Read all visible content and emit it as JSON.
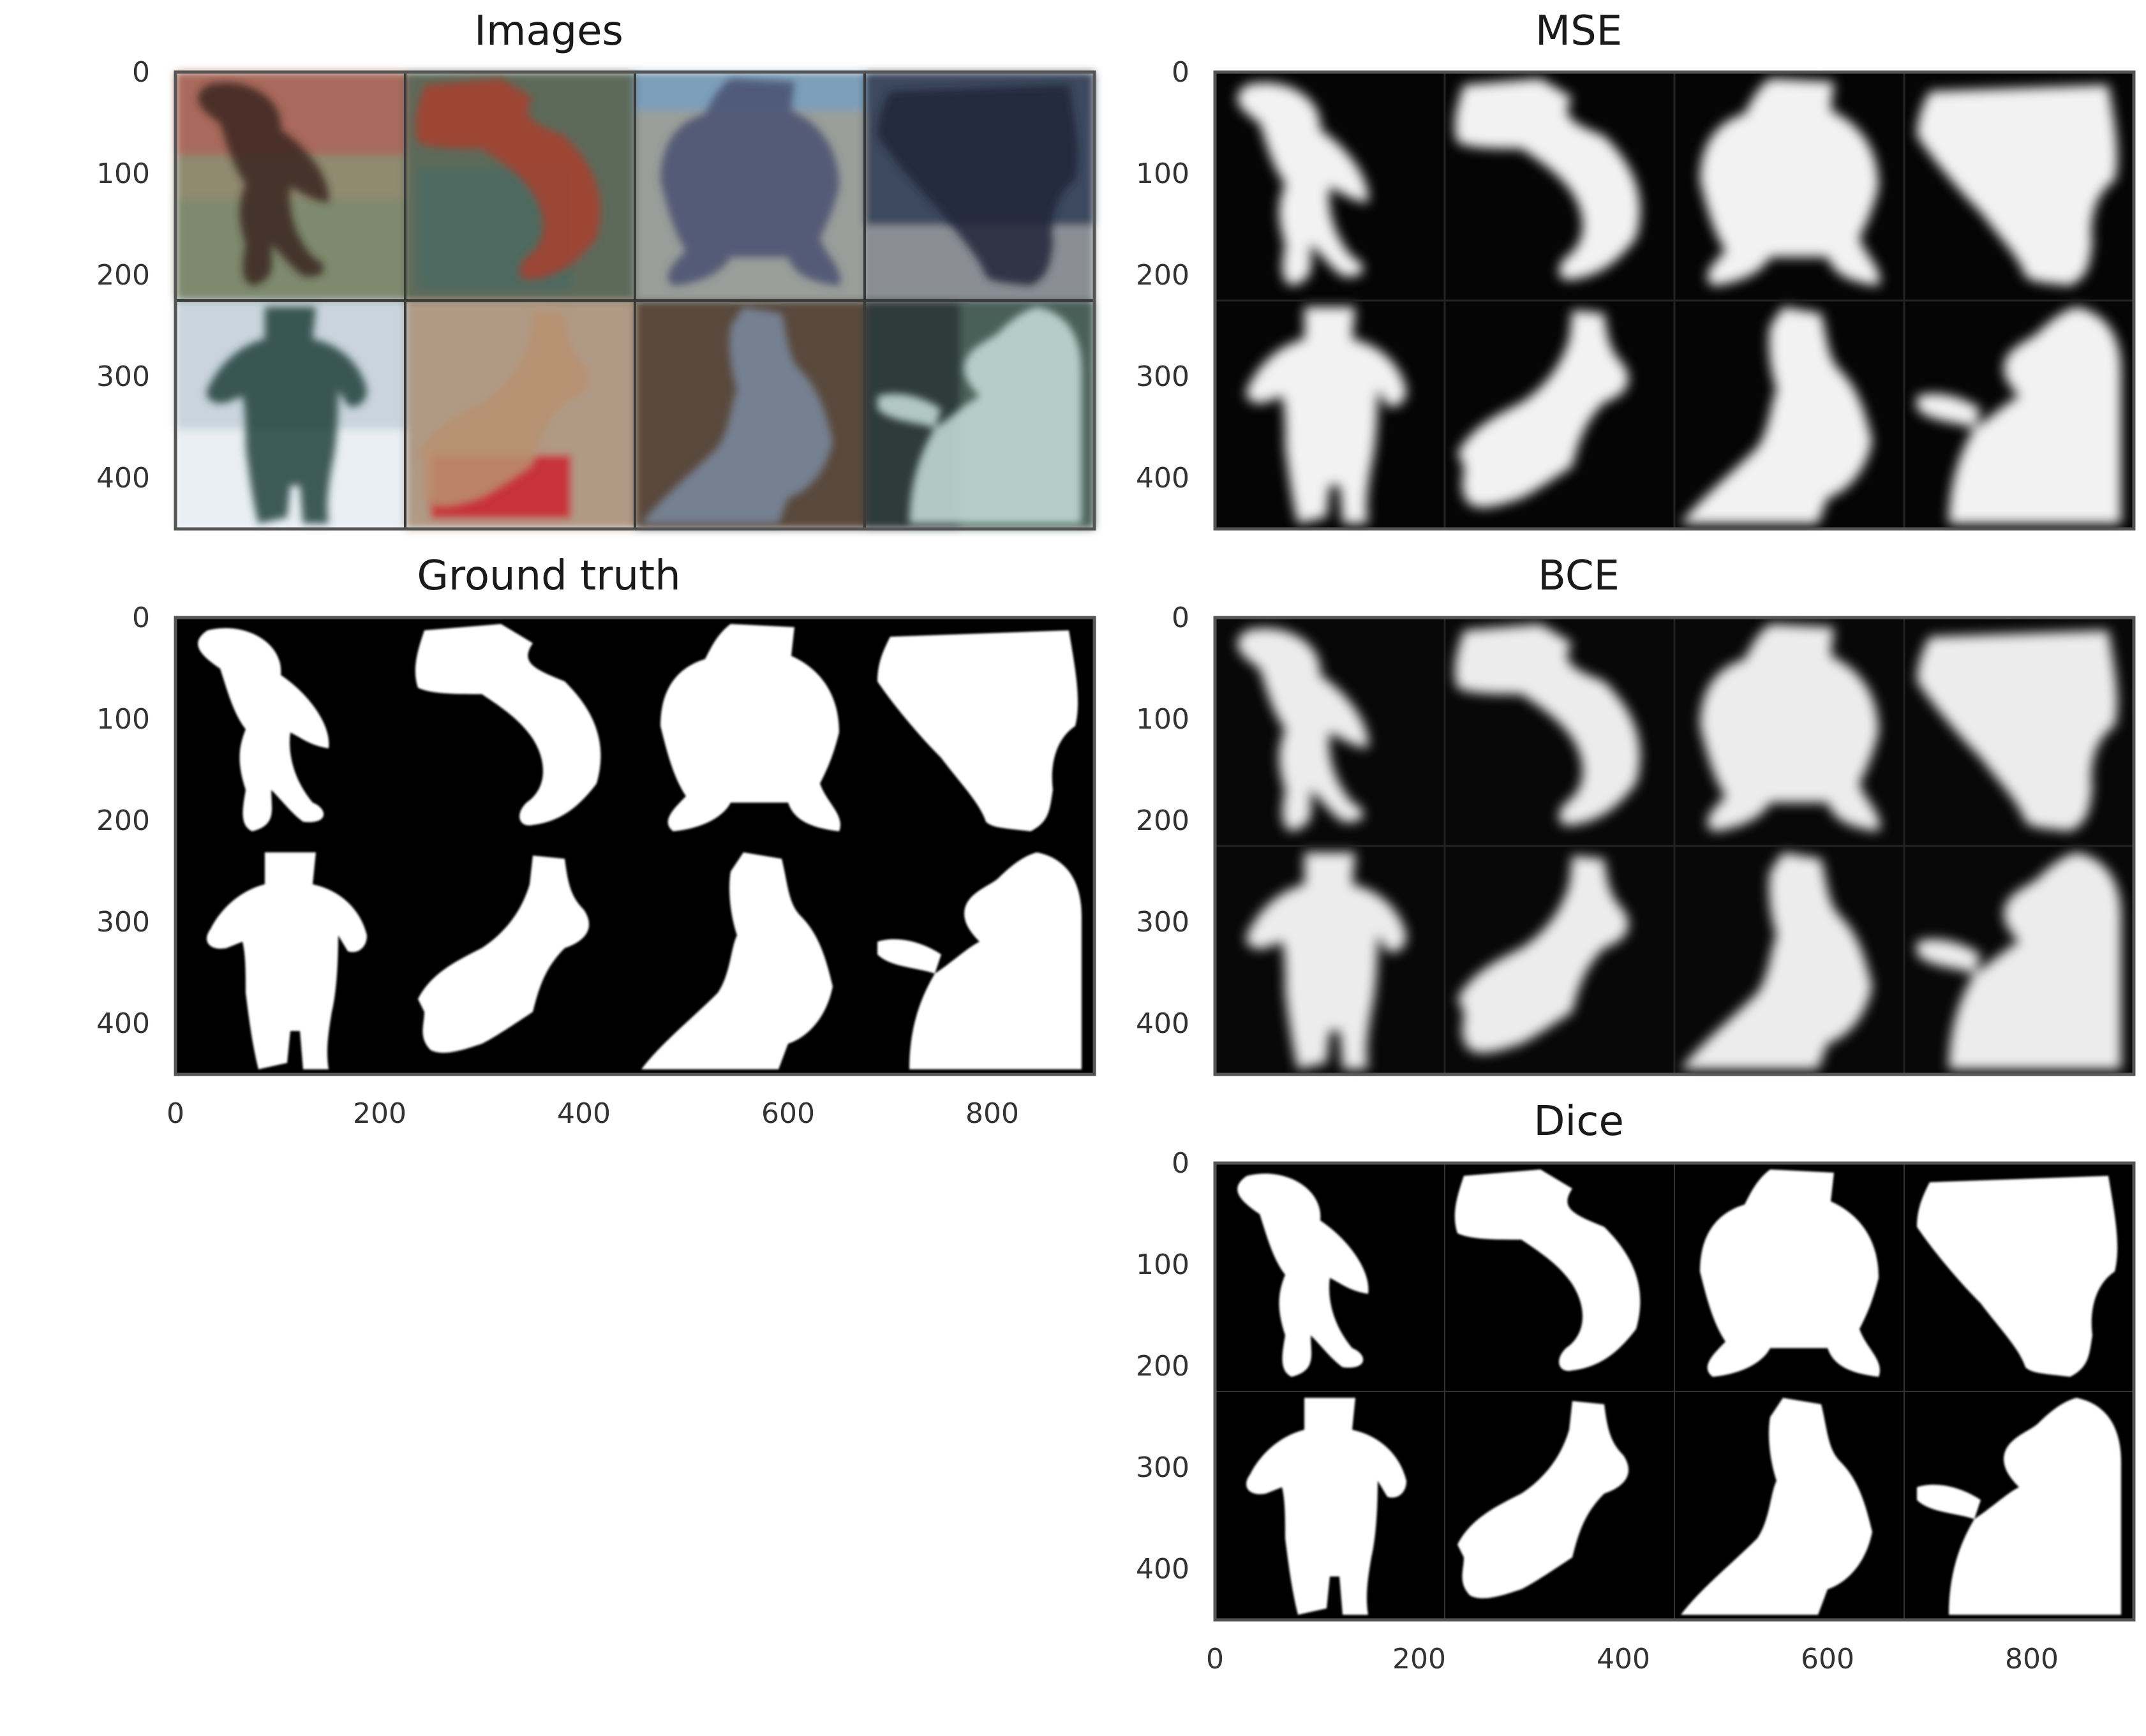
{
  "colors": {
    "background": "#ffffff",
    "mask_fg": "#ffffff",
    "mask_bg": "#000000",
    "frame": "#555555",
    "text": "#1a1a1a",
    "tick_text": "#333333"
  },
  "chart_data": [
    {
      "type": "image",
      "title": "Images",
      "xlim": [
        0,
        900
      ],
      "ylim": [
        450,
        0
      ],
      "xticks": [],
      "yticks": [
        0,
        100,
        200,
        300,
        400
      ],
      "grid": false,
      "content": "2x4 grid of photos of people"
    },
    {
      "type": "image",
      "title": "MSE",
      "xlim": [
        0,
        900
      ],
      "ylim": [
        450,
        0
      ],
      "xticks": [],
      "yticks": [
        0,
        100,
        200,
        300,
        400
      ],
      "grid": false,
      "content": "2x4 grid of soft grayscale predicted masks"
    },
    {
      "type": "image",
      "title": "Ground truth",
      "xlim": [
        0,
        900
      ],
      "ylim": [
        450,
        0
      ],
      "xticks": [
        0,
        200,
        400,
        600,
        800
      ],
      "yticks": [
        0,
        100,
        200,
        300,
        400
      ],
      "grid": false,
      "content": "2x4 grid of binary person masks"
    },
    {
      "type": "image",
      "title": "BCE",
      "xlim": [
        0,
        900
      ],
      "ylim": [
        450,
        0
      ],
      "xticks": [],
      "yticks": [
        0,
        100,
        200,
        300,
        400
      ],
      "grid": false,
      "content": "2x4 grid of soft grayscale predicted masks"
    },
    {
      "type": "image",
      "title": "Dice",
      "xlim": [
        0,
        900
      ],
      "ylim": [
        450,
        0
      ],
      "xticks": [
        0,
        200,
        400,
        600,
        800
      ],
      "yticks": [
        0,
        100,
        200,
        300,
        400
      ],
      "grid": false,
      "content": "2x4 grid of near-binary predicted masks"
    }
  ]
}
